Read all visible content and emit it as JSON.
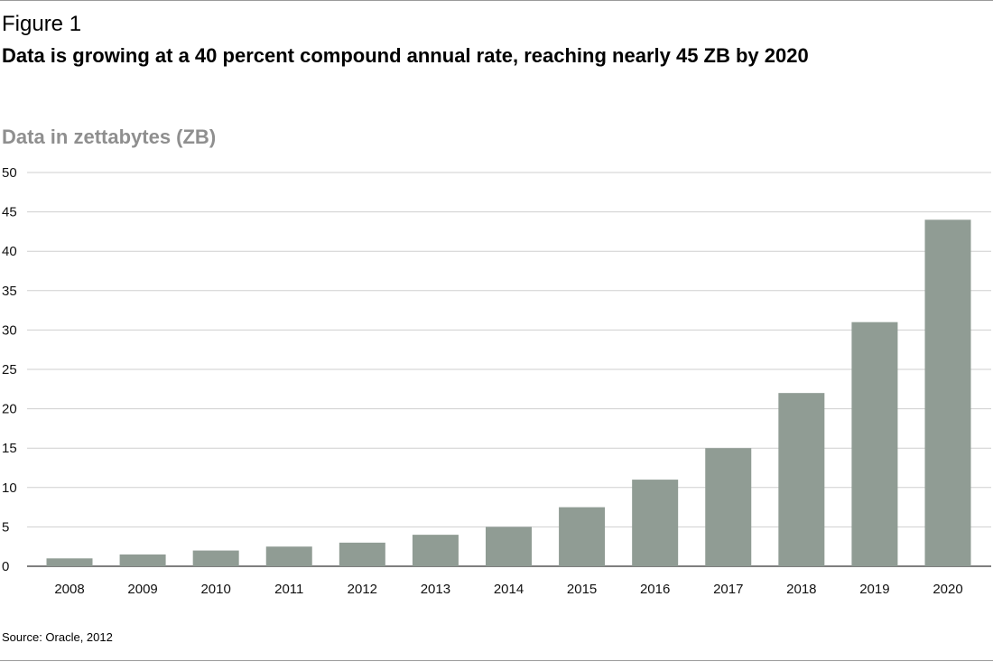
{
  "figure": {
    "label": "Figure 1",
    "title": "Data is growing at a 40 percent compound annual rate, reaching nearly 45 ZB by 2020",
    "source": "Source: Oracle, 2012"
  },
  "colors": {
    "bar": "#909c94",
    "grid": "#cfcfcf",
    "axis_title": "#8f8f8f",
    "rule": "#9a9a9a"
  },
  "chart_data": {
    "type": "bar",
    "title": "Data is growing at a 40 percent compound annual rate, reaching nearly 45 ZB by 2020",
    "ylabel": "Data in zettabytes (ZB)",
    "xlabel": "",
    "categories": [
      "2008",
      "2009",
      "2010",
      "2011",
      "2012",
      "2013",
      "2014",
      "2015",
      "2016",
      "2017",
      "2018",
      "2019",
      "2020"
    ],
    "values": [
      1,
      1.5,
      2,
      2.5,
      3,
      4,
      5,
      7.5,
      11,
      15,
      22,
      31,
      44
    ],
    "ylim": [
      0,
      50
    ],
    "yticks": [
      0,
      5,
      10,
      15,
      20,
      25,
      30,
      35,
      40,
      45,
      50
    ],
    "grid": true,
    "legend": "none"
  }
}
